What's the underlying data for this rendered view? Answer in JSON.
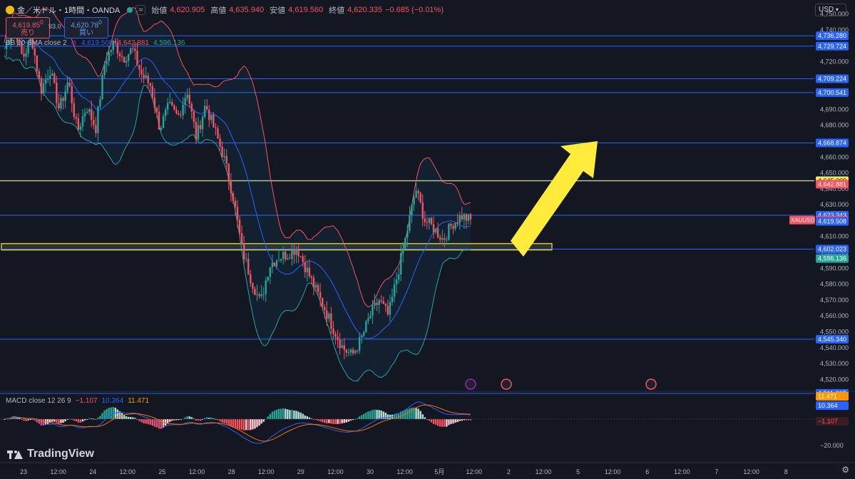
{
  "legend": {
    "symbol": "金／米ドル・1時間・OANDA",
    "open_label": "始値",
    "open": "4,620.905",
    "high_label": "高値",
    "high": "4,635.940",
    "low_label": "安値",
    "low": "4,619.560",
    "close_label": "終値",
    "close": "4,620.335",
    "change": "−0.685 (−0.01%)"
  },
  "trade": {
    "sell_price": "4,619.85",
    "sell_sup": "0",
    "sell_label": "売り",
    "spread": "93.0",
    "buy_price": "4,620.78",
    "buy_sup": "0",
    "buy_label": "買い"
  },
  "bb": {
    "title": "BB 20 SMA close 2",
    "basis": "4,619.508",
    "upper": "4,642.881",
    "lower": "4,596.136"
  },
  "macd": {
    "title": "MACD close 12 26 9",
    "hist": "−1.107",
    "macd": "10.364",
    "signal": "11.471"
  },
  "currency": "USD",
  "brand": "TradingView",
  "colors": {
    "bg": "#131722",
    "up": "#26a69a",
    "down": "#f7525f",
    "hline_blue": "#2962ff",
    "hline_yellow": "#ffeb3b",
    "bb_upper": "#f7525f",
    "bb_lower": "#26a69a",
    "bb_basis": "#2962ff",
    "macd_line": "#2962ff",
    "signal_line": "#ff6d00",
    "arrow": "#ffeb3b"
  },
  "chart_data": {
    "type": "candlestick",
    "y_axis_ticks": [
      4750,
      4740,
      4730,
      4720,
      4710,
      4700,
      4690,
      4680,
      4670,
      4660,
      4650,
      4640,
      4630,
      4620,
      4610,
      4600,
      4590,
      4580,
      4570,
      4560,
      4550,
      4540,
      4530,
      4520
    ],
    "y_axis_labels": [
      "4,750.000",
      "4,740.000",
      "4,730.000",
      "4,720.000",
      "4,710.000",
      "4,700.000",
      "4,690.000",
      "4,680.000",
      "4,670.000",
      "4,660.000",
      "4,650.000",
      "4,640.000",
      "4,630.000",
      "4,620.000",
      "4,610.000",
      "4,600.000",
      "4,590.000",
      "4,580.000",
      "4,570.000",
      "4,560.000",
      "4,550.000",
      "4,540.000",
      "4,530.000",
      "4,520.000"
    ],
    "ylim": [
      4513,
      4757
    ],
    "x_axis_labels": [
      "23",
      "12:00",
      "24",
      "12:00",
      "25",
      "12:00",
      "28",
      "12:00",
      "29",
      "12:00",
      "30",
      "12:00",
      "5月",
      "12:00",
      "2",
      "12:00",
      "5",
      "12:00",
      "6",
      "12:00",
      "7",
      "12:00",
      "8"
    ],
    "horizontal_levels": [
      {
        "value": 4736.28,
        "label": "4,736.280",
        "color": "blue"
      },
      {
        "value": 4729.724,
        "label": "4,729.724",
        "color": "blue"
      },
      {
        "value": 4709.224,
        "label": "4,709.224",
        "color": "blue"
      },
      {
        "value": 4700.541,
        "label": "4,700.541",
        "color": "blue"
      },
      {
        "value": 4668.874,
        "label": "4,668.874",
        "color": "blue"
      },
      {
        "value": 4645.267,
        "label": "4,645.267",
        "color": "blue"
      },
      {
        "value": 4645.0,
        "label": "4,645.000",
        "color": "yellow"
      },
      {
        "value": 4623.343,
        "label": "4,623.343",
        "color": "blue"
      },
      {
        "value": 4602.023,
        "label": "4,602.023",
        "color": "blue"
      },
      {
        "value": 4545.34,
        "label": "4,545.340",
        "color": "blue"
      },
      {
        "value": 4511.267,
        "label": "4,511.267",
        "color": "blue"
      }
    ],
    "price_tags": [
      {
        "value": 4642.881,
        "label": "4,642.881",
        "color": "red"
      },
      {
        "value": 4620.335,
        "label": "4,620.335",
        "color": "red",
        "name": "XAUUSD"
      },
      {
        "value": 4619.508,
        "label": "4,619.508",
        "color": "blue"
      },
      {
        "value": 4596.136,
        "label": "4,596.136",
        "color": "green"
      }
    ],
    "zone": {
      "low": 4601.5,
      "high": 4605.5
    },
    "close_path": [
      4728,
      4745,
      4722,
      4735,
      4702,
      4715,
      4690,
      4708,
      4676,
      4692,
      4678,
      4720,
      4732,
      4722,
      4728,
      4712,
      4705,
      4678,
      4692,
      4685,
      4702,
      4672,
      4693,
      4677,
      4660,
      4636,
      4602,
      4583,
      4568,
      4592,
      4597,
      4599,
      4603,
      4590,
      4577,
      4565,
      4552,
      4540,
      4535,
      4545,
      4560,
      4570,
      4560,
      4586,
      4612,
      4640,
      4620,
      4615,
      4608,
      4618,
      4623,
      4620
    ],
    "macd_axis": {
      "labels": [
        "−1.107",
        "−20.000"
      ]
    },
    "macd_tags": [
      {
        "value": 11.471,
        "label": "11.471",
        "color": "orange"
      },
      {
        "value": 10.364,
        "label": "10.364",
        "color": "blue"
      }
    ]
  }
}
